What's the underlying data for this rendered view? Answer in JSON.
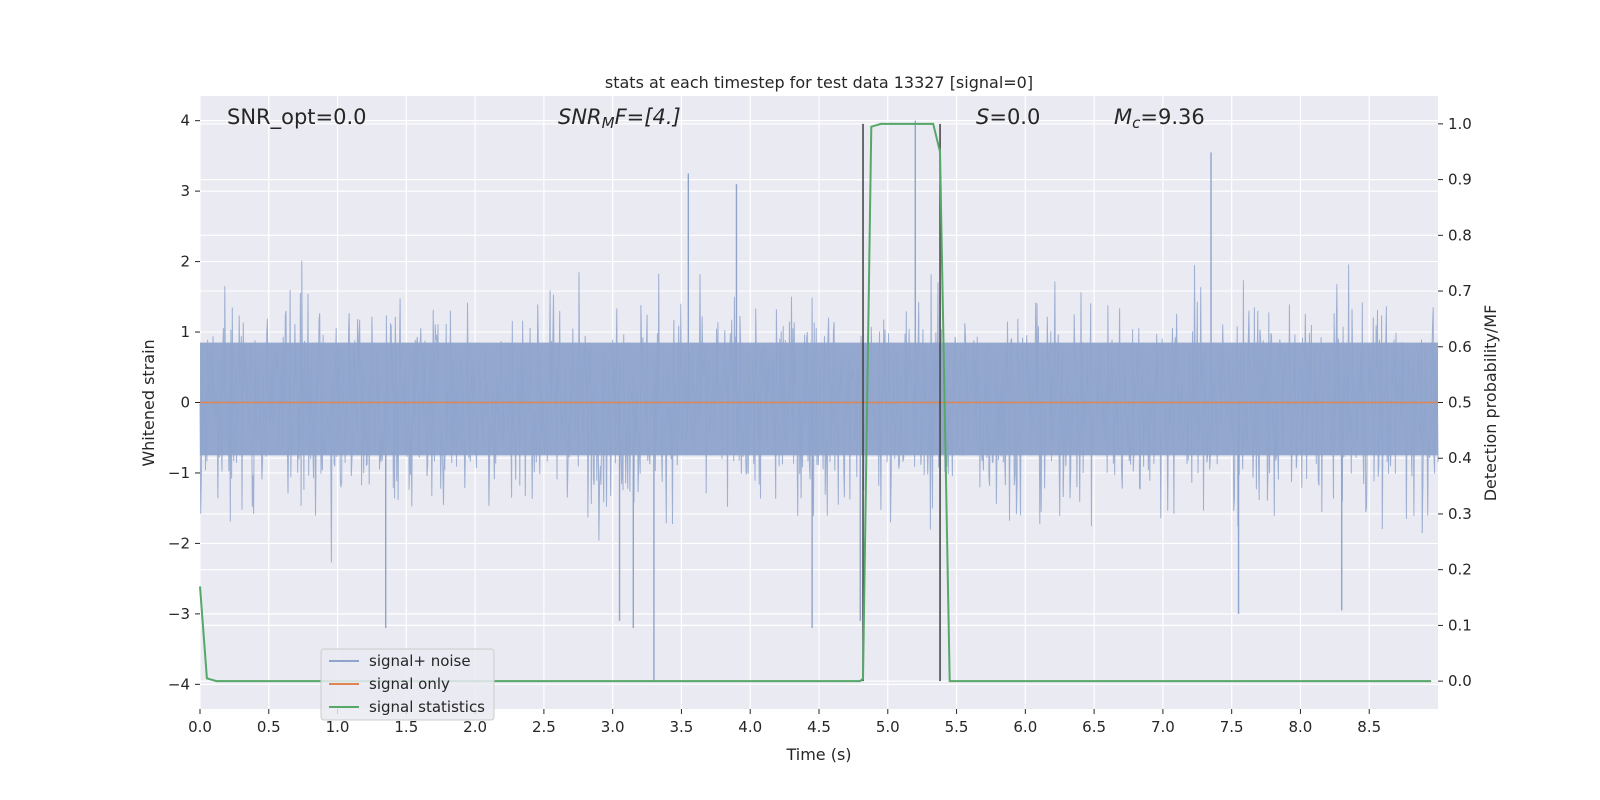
{
  "chart_data": {
    "type": "line",
    "title": "stats at each timestep for test data 13327 [signal=0]",
    "xlabel": "Time (s)",
    "ylabel": "Whitened strain",
    "y2label": "Detection probability/MF",
    "xlim": [
      0.0,
      9.0
    ],
    "ylim": [
      -4.35,
      4.35
    ],
    "y2lim": [
      -0.05,
      1.05
    ],
    "x_ticks": [
      0.0,
      0.5,
      1.0,
      1.5,
      2.0,
      2.5,
      3.0,
      3.5,
      4.0,
      4.5,
      5.0,
      5.5,
      6.0,
      6.5,
      7.0,
      7.5,
      8.0,
      8.5
    ],
    "x_tick_labels": [
      "0.0",
      "0.5",
      "1.0",
      "1.5",
      "2.0",
      "2.5",
      "3.0",
      "3.5",
      "4.0",
      "4.5",
      "5.0",
      "5.5",
      "6.0",
      "6.5",
      "7.0",
      "7.5",
      "8.0",
      "8.5"
    ],
    "y_ticks": [
      4,
      3,
      2,
      1,
      0,
      -1,
      -2,
      -3,
      -4
    ],
    "y_tick_labels": [
      "4",
      "3",
      "2",
      "1",
      "0",
      "−1",
      "−2",
      "−3",
      "−4"
    ],
    "y2_ticks": [
      1.0,
      0.9,
      0.8,
      0.7,
      0.6,
      0.5,
      0.4,
      0.3,
      0.2,
      0.1,
      0.0
    ],
    "y2_tick_labels": [
      "1.0",
      "0.9",
      "0.8",
      "0.7",
      "0.6",
      "0.5",
      "0.4",
      "0.3",
      "0.2",
      "0.1",
      "0.0"
    ],
    "grid": true,
    "legend_position": "bottom-left",
    "annotations": {
      "snr_opt": "SNR_opt=0.0",
      "snr_mf_main": "SNR",
      "snr_mf_sub": "M",
      "snr_mf_rest": "F=[4.]",
      "s_main": "S",
      "s_rest": "=0.0",
      "mc_main": "M",
      "mc_sub": "c",
      "mc_rest": "=9.36"
    },
    "vertical_lines_x": [
      4.82,
      5.38
    ],
    "series": [
      {
        "name": "signal+ noise",
        "color": "#8fa4cc",
        "band_core": [
          -0.75,
          0.85
        ],
        "typical_range": [
          -1.6,
          1.6
        ],
        "max": 4.0,
        "min": -3.95,
        "spikes": [
          {
            "x": 1.35,
            "y": -3.2
          },
          {
            "x": 3.05,
            "y": -3.1
          },
          {
            "x": 3.15,
            "y": -3.2
          },
          {
            "x": 3.3,
            "y": -3.95
          },
          {
            "x": 3.55,
            "y": 3.25
          },
          {
            "x": 3.9,
            "y": 3.1
          },
          {
            "x": 4.45,
            "y": -3.2
          },
          {
            "x": 4.8,
            "y": -3.1
          },
          {
            "x": 5.2,
            "y": 4.0
          },
          {
            "x": 7.35,
            "y": 3.55
          },
          {
            "x": 7.55,
            "y": -3.0
          },
          {
            "x": 8.3,
            "y": -2.95
          }
        ]
      },
      {
        "name": "signal only",
        "color": "#dd8452",
        "value": 0.0
      },
      {
        "name": "signal statistics",
        "color": "#55a868",
        "axis": "right",
        "x": [
          0.0,
          0.05,
          0.12,
          4.8,
          4.82,
          4.88,
          4.95,
          5.33,
          5.38,
          5.45,
          8.95
        ],
        "values": [
          0.17,
          0.005,
          0.0,
          0.0,
          0.005,
          0.995,
          1.0,
          1.0,
          0.95,
          0.0,
          0.0
        ]
      }
    ]
  }
}
